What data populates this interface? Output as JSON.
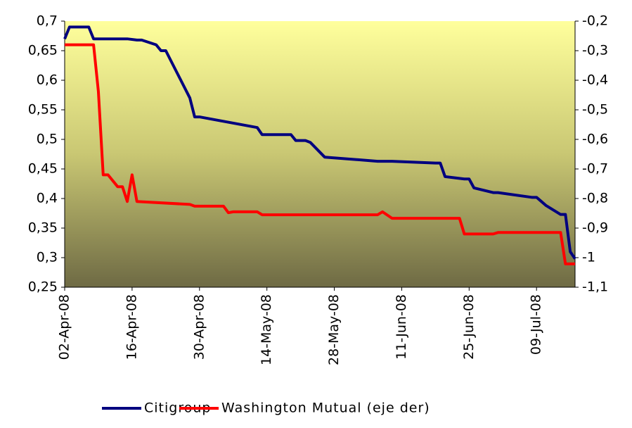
{
  "chart_data": {
    "type": "line",
    "xlim": [
      "2008-04-02",
      "2008-07-17"
    ],
    "xticks": [
      {
        "value": "2008-04-02",
        "label": "02-Apr-08"
      },
      {
        "value": "2008-04-16",
        "label": "16-Apr-08"
      },
      {
        "value": "2008-04-30",
        "label": "30-Apr-08"
      },
      {
        "value": "2008-05-14",
        "label": "14-May-08"
      },
      {
        "value": "2008-05-28",
        "label": "28-May-08"
      },
      {
        "value": "2008-06-11",
        "label": "11-Jun-08"
      },
      {
        "value": "2008-06-25",
        "label": "25-Jun-08"
      },
      {
        "value": "2008-07-09",
        "label": "09-Jul-08"
      }
    ],
    "ylim": [
      0.25,
      0.7
    ],
    "yticks": [
      {
        "value": 0.25,
        "label": "0,25"
      },
      {
        "value": 0.3,
        "label": "0,3"
      },
      {
        "value": 0.35,
        "label": "0,35"
      },
      {
        "value": 0.4,
        "label": "0,4"
      },
      {
        "value": 0.45,
        "label": "0,45"
      },
      {
        "value": 0.5,
        "label": "0,5"
      },
      {
        "value": 0.55,
        "label": "0,55"
      },
      {
        "value": 0.6,
        "label": "0,6"
      },
      {
        "value": 0.65,
        "label": "0,65"
      },
      {
        "value": 0.7,
        "label": "0,7"
      }
    ],
    "y2lim": [
      -1.1,
      -0.2
    ],
    "y2ticks": [
      {
        "value": -1.1,
        "label": "-1,1"
      },
      -1,
      {
        "value": -0.9,
        "label": "-0,9"
      },
      {
        "value": -0.8,
        "label": "-0,8"
      },
      {
        "value": -0.7,
        "label": "-0,7"
      },
      {
        "value": -0.6,
        "label": "-0,6"
      },
      {
        "value": -0.5,
        "label": "-0,5"
      },
      {
        "value": -0.4,
        "label": "-0,4"
      },
      {
        "value": -0.3,
        "label": "-0,3"
      },
      {
        "value": -0.2,
        "label": "-0,2"
      }
    ],
    "series": [
      {
        "name": "Citigroup",
        "color": "#00007f",
        "x": [
          "2008-04-02",
          "2008-04-03",
          "2008-04-07",
          "2008-04-08",
          "2008-04-15",
          "2008-04-17",
          "2008-04-18",
          "2008-04-21",
          "2008-04-22",
          "2008-04-23",
          "2008-04-28",
          "2008-04-29",
          "2008-04-30",
          "2008-05-12",
          "2008-05-13",
          "2008-05-19",
          "2008-05-20",
          "2008-05-22",
          "2008-05-23",
          "2008-05-26",
          "2008-06-06",
          "2008-06-09",
          "2008-06-18",
          "2008-06-19",
          "2008-06-20",
          "2008-06-24",
          "2008-06-25",
          "2008-06-26",
          "2008-06-30",
          "2008-07-01",
          "2008-07-08",
          "2008-07-09",
          "2008-07-10",
          "2008-07-11",
          "2008-07-14",
          "2008-07-15",
          "2008-07-16",
          "2008-07-17"
        ],
        "values": [
          0.67,
          0.69,
          0.69,
          0.67,
          0.67,
          0.668,
          0.668,
          0.66,
          0.65,
          0.65,
          0.57,
          0.538,
          0.538,
          0.52,
          0.508,
          0.508,
          0.498,
          0.498,
          0.495,
          0.47,
          0.463,
          0.463,
          0.46,
          0.46,
          0.437,
          0.433,
          0.433,
          0.418,
          0.41,
          0.41,
          0.402,
          0.402,
          0.395,
          0.388,
          0.373,
          0.373,
          0.31,
          0.298
        ]
      },
      {
        "name": "Washington Mutual (eje der)",
        "color": "#ff0000",
        "axis": "y2",
        "x": [
          "2008-04-02",
          "2008-04-08",
          "2008-04-09",
          "2008-04-10",
          "2008-04-11",
          "2008-04-13",
          "2008-04-14",
          "2008-04-15",
          "2008-04-16",
          "2008-04-17",
          "2008-04-28",
          "2008-04-29",
          "2008-05-05",
          "2008-05-06",
          "2008-05-07",
          "2008-05-12",
          "2008-05-13",
          "2008-06-06",
          "2008-06-07",
          "2008-06-09",
          "2008-06-23",
          "2008-06-24",
          "2008-06-30",
          "2008-07-01",
          "2008-07-14",
          "2008-07-15",
          "2008-07-17"
        ],
        "values": [
          -0.28,
          -0.28,
          -0.438,
          -0.72,
          -0.72,
          -0.76,
          -0.76,
          -0.81,
          -0.72,
          -0.81,
          -0.82,
          -0.826,
          -0.826,
          -0.848,
          -0.845,
          -0.845,
          -0.855,
          -0.855,
          -0.845,
          -0.867,
          -0.867,
          -0.92,
          -0.92,
          -0.915,
          -0.915,
          -1.021,
          -1.021
        ]
      }
    ]
  }
}
